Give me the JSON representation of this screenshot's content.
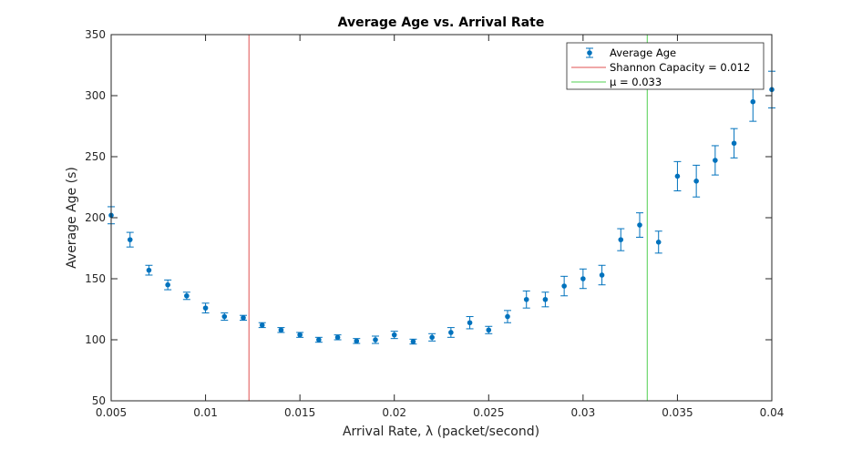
{
  "chart_data": {
    "type": "scatter",
    "title": "Average Age vs. Arrival Rate",
    "xlabel": "Arrival Rate, λ (packet/second)",
    "ylabel": "Average Age (s)",
    "xlim": [
      0.005,
      0.04
    ],
    "ylim": [
      50,
      350
    ],
    "xticks": [
      0.005,
      0.01,
      0.015,
      0.02,
      0.025,
      0.03,
      0.035,
      0.04
    ],
    "xtick_labels": [
      "0.005",
      "0.01",
      "0.015",
      "0.02",
      "0.025",
      "0.03",
      "0.035",
      "0.04"
    ],
    "yticks": [
      50,
      100,
      150,
      200,
      250,
      300,
      350
    ],
    "ytick_labels": [
      "50",
      "100",
      "150",
      "200",
      "250",
      "300",
      "350"
    ],
    "grid": false,
    "legend_position": "top-right",
    "series": [
      {
        "name": "Average Age",
        "color": "#0072BD",
        "x": [
          0.005,
          0.006,
          0.007,
          0.008,
          0.009,
          0.01,
          0.011,
          0.012,
          0.013,
          0.014,
          0.015,
          0.016,
          0.017,
          0.018,
          0.019,
          0.02,
          0.021,
          0.022,
          0.023,
          0.024,
          0.025,
          0.026,
          0.027,
          0.028,
          0.029,
          0.03,
          0.031,
          0.032,
          0.033,
          0.034,
          0.035,
          0.036,
          0.037,
          0.038,
          0.039,
          0.04
        ],
        "y": [
          202,
          182,
          157,
          145,
          136,
          126,
          119,
          118,
          112,
          108,
          104,
          100,
          102,
          99,
          100,
          104,
          98.5,
          102,
          106,
          114,
          108,
          119,
          133,
          133,
          144,
          150,
          153,
          182,
          194,
          180,
          234,
          230,
          247,
          261,
          295,
          305
        ],
        "err": [
          7,
          6,
          4,
          4,
          3,
          4,
          3,
          2,
          2,
          2,
          2,
          2,
          2,
          2,
          3,
          3,
          2,
          3,
          4,
          5,
          3,
          5,
          7,
          6,
          8,
          8,
          8,
          9,
          10,
          9,
          12,
          13,
          12,
          12,
          16,
          15
        ]
      }
    ],
    "reference_lines": [
      {
        "name": "Shannon Capacity = 0.012",
        "x": 0.0123,
        "color": "#e05050"
      },
      {
        "name": "μ = 0.033",
        "x": 0.0334,
        "color": "#50d050"
      }
    ]
  }
}
